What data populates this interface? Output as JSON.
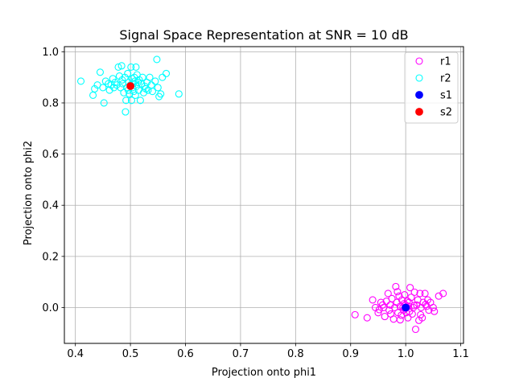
{
  "chart_data": {
    "type": "scatter",
    "title": "Signal Space Representation at SNR = 10 dB",
    "xlabel": "Projection onto phi1",
    "ylabel": "Projection onto phi2",
    "xlim": [
      0.38,
      1.105
    ],
    "ylim": [
      -0.14,
      1.02
    ],
    "xticks": [
      0.4,
      0.5,
      0.6,
      0.7,
      0.8,
      0.9,
      1.0,
      1.1
    ],
    "yticks": [
      0.0,
      0.2,
      0.4,
      0.6,
      0.8,
      1.0
    ],
    "xtick_labels": [
      "0.4",
      "0.5",
      "0.6",
      "0.7",
      "0.8",
      "0.9",
      "1.0",
      "1.1"
    ],
    "ytick_labels": [
      "0.0",
      "0.2",
      "0.4",
      "0.6",
      "0.8",
      "1.0"
    ],
    "grid": true,
    "legend_position": "top-right",
    "series": [
      {
        "name": "r1",
        "marker": "hollow-circle",
        "color": "#ff00ff",
        "points": [
          [
            0.908,
            -0.028
          ],
          [
            0.93,
            -0.04
          ],
          [
            0.94,
            0.03
          ],
          [
            0.945,
            0.0
          ],
          [
            0.95,
            -0.02
          ],
          [
            0.955,
            0.02
          ],
          [
            0.96,
            0.0
          ],
          [
            0.962,
            -0.035
          ],
          [
            0.965,
            0.025
          ],
          [
            0.968,
            0.055
          ],
          [
            0.97,
            -0.01
          ],
          [
            0.972,
            0.01
          ],
          [
            0.975,
            0.035
          ],
          [
            0.978,
            -0.045
          ],
          [
            0.98,
            0.0
          ],
          [
            0.982,
            0.082
          ],
          [
            0.984,
            0.02
          ],
          [
            0.986,
            -0.02
          ],
          [
            0.988,
            0.045
          ],
          [
            0.99,
            0.005
          ],
          [
            0.992,
            -0.03
          ],
          [
            0.993,
            0.03
          ],
          [
            0.995,
            0.0
          ],
          [
            0.996,
            -0.01
          ],
          [
            0.997,
            0.015
          ],
          [
            0.998,
            0.05
          ],
          [
            0.999,
            -0.005
          ],
          [
            1.0,
            0.01
          ],
          [
            1.001,
            -0.02
          ],
          [
            1.002,
            0.0
          ],
          [
            1.003,
            0.025
          ],
          [
            1.004,
            -0.04
          ],
          [
            1.005,
            0.005
          ],
          [
            1.006,
            0.02
          ],
          [
            1.007,
            -0.015
          ],
          [
            1.008,
            0.078
          ],
          [
            1.01,
            0.04
          ],
          [
            1.012,
            -0.025
          ],
          [
            1.014,
            0.0
          ],
          [
            1.016,
            0.06
          ],
          [
            1.018,
            -0.085
          ],
          [
            1.02,
            0.01
          ],
          [
            1.022,
            0.03
          ],
          [
            1.024,
            -0.05
          ],
          [
            1.026,
            0.055
          ],
          [
            1.028,
            0.0
          ],
          [
            1.03,
            -0.04
          ],
          [
            1.032,
            0.02
          ],
          [
            1.035,
            0.055
          ],
          [
            1.038,
            0.005
          ],
          [
            1.04,
            0.03
          ],
          [
            1.042,
            -0.01
          ],
          [
            1.045,
            0.02
          ],
          [
            1.05,
            0.0
          ],
          [
            1.052,
            -0.015
          ],
          [
            1.06,
            0.045
          ],
          [
            1.068,
            0.055
          ],
          [
            0.958,
            0.01
          ],
          [
            0.973,
            -0.025
          ],
          [
            1.015,
            0.008
          ],
          [
            0.985,
            0.062
          ],
          [
            1.027,
            -0.028
          ],
          [
            0.952,
            -0.008
          ],
          [
            1.036,
            0.012
          ],
          [
            0.99,
            -0.048
          ]
        ]
      },
      {
        "name": "r2",
        "marker": "hollow-circle",
        "color": "#00ffff",
        "points": [
          [
            0.41,
            0.885
          ],
          [
            0.432,
            0.83
          ],
          [
            0.435,
            0.855
          ],
          [
            0.44,
            0.87
          ],
          [
            0.445,
            0.92
          ],
          [
            0.45,
            0.86
          ],
          [
            0.452,
            0.8
          ],
          [
            0.455,
            0.885
          ],
          [
            0.46,
            0.875
          ],
          [
            0.462,
            0.85
          ],
          [
            0.465,
            0.87
          ],
          [
            0.468,
            0.895
          ],
          [
            0.47,
            0.86
          ],
          [
            0.472,
            0.88
          ],
          [
            0.475,
            0.87
          ],
          [
            0.478,
            0.94
          ],
          [
            0.48,
            0.905
          ],
          [
            0.482,
            0.86
          ],
          [
            0.484,
            0.945
          ],
          [
            0.485,
            0.89
          ],
          [
            0.486,
            0.875
          ],
          [
            0.488,
            0.84
          ],
          [
            0.49,
            0.9
          ],
          [
            0.491,
            0.765
          ],
          [
            0.492,
            0.81
          ],
          [
            0.494,
            0.86
          ],
          [
            0.495,
            0.915
          ],
          [
            0.496,
            0.85
          ],
          [
            0.497,
            0.88
          ],
          [
            0.498,
            0.835
          ],
          [
            0.5,
            0.87
          ],
          [
            0.501,
            0.94
          ],
          [
            0.502,
            0.81
          ],
          [
            0.503,
            0.895
          ],
          [
            0.504,
            0.86
          ],
          [
            0.505,
            0.875
          ],
          [
            0.506,
            0.845
          ],
          [
            0.507,
            0.9
          ],
          [
            0.508,
            0.885
          ],
          [
            0.509,
            0.83
          ],
          [
            0.51,
            0.94
          ],
          [
            0.511,
            0.865
          ],
          [
            0.512,
            0.91
          ],
          [
            0.514,
            0.88
          ],
          [
            0.515,
            0.85
          ],
          [
            0.516,
            0.89
          ],
          [
            0.518,
            0.81
          ],
          [
            0.52,
            0.875
          ],
          [
            0.522,
            0.9
          ],
          [
            0.524,
            0.84
          ],
          [
            0.526,
            0.865
          ],
          [
            0.528,
            0.855
          ],
          [
            0.53,
            0.88
          ],
          [
            0.532,
            0.85
          ],
          [
            0.535,
            0.9
          ],
          [
            0.538,
            0.87
          ],
          [
            0.54,
            0.845
          ],
          [
            0.545,
            0.885
          ],
          [
            0.548,
            0.97
          ],
          [
            0.55,
            0.86
          ],
          [
            0.552,
            0.825
          ],
          [
            0.555,
            0.835
          ],
          [
            0.558,
            0.9
          ],
          [
            0.565,
            0.915
          ],
          [
            0.588,
            0.835
          ]
        ]
      },
      {
        "name": "s1",
        "marker": "filled-circle",
        "color": "#0000ff",
        "points": [
          [
            1.0,
            0.0
          ]
        ]
      },
      {
        "name": "s2",
        "marker": "filled-circle",
        "color": "#ff0000",
        "points": [
          [
            0.5,
            0.866
          ]
        ]
      }
    ]
  }
}
